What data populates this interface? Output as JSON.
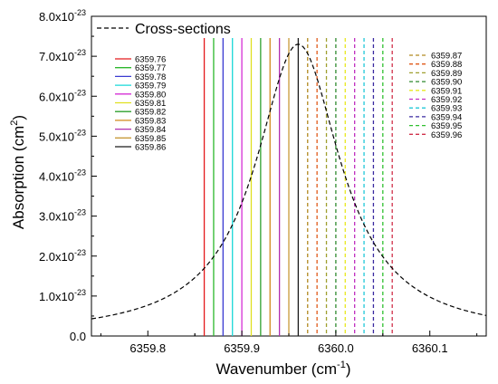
{
  "chart_data": {
    "type": "line",
    "xlabel": "Wavenumber (cm",
    "xlabel_sup": "-1",
    "xlabel_end": ")",
    "ylabel": "Absorption (cm",
    "ylabel_sup": "2",
    "ylabel_end": ")",
    "xlim": [
      6359.74,
      6360.16
    ],
    "ylim": [
      0,
      8e-23
    ],
    "x_ticks": [
      {
        "value": 6359.8,
        "label": "6359.8"
      },
      {
        "value": 6359.9,
        "label": "6359.9"
      },
      {
        "value": 6360.0,
        "label": "6360.0"
      },
      {
        "value": 6360.1,
        "label": "6360.1"
      }
    ],
    "y_ticks": [
      {
        "value": 0,
        "label": "0.0",
        "exp": ""
      },
      {
        "value": 1e-23,
        "label": "1.0x10",
        "exp": "-23"
      },
      {
        "value": 2e-23,
        "label": "2.0x10",
        "exp": "-23"
      },
      {
        "value": 3e-23,
        "label": "3.0x10",
        "exp": "-23"
      },
      {
        "value": 4e-23,
        "label": "4.0x10",
        "exp": "-23"
      },
      {
        "value": 5e-23,
        "label": "5.0x10",
        "exp": "-23"
      },
      {
        "value": 6e-23,
        "label": "6.0x10",
        "exp": "-23"
      },
      {
        "value": 7e-23,
        "label": "7.0x10",
        "exp": "-23"
      },
      {
        "value": 8e-23,
        "label": "8.0x10",
        "exp": "-23"
      }
    ],
    "curve": {
      "name": "Cross-sections",
      "style": "dashed",
      "color": "#000000",
      "center": 6359.96,
      "peak": 7.3e-23,
      "hwhm": 0.055
    },
    "lines": [
      {
        "x": 6359.86,
        "label": "6359.76",
        "color": "#e41a1c",
        "style": "solid"
      },
      {
        "x": 6359.87,
        "label": "6359.77",
        "color": "#2db82d",
        "style": "solid"
      },
      {
        "x": 6359.88,
        "label": "6359.78",
        "color": "#3b3bd1",
        "style": "solid"
      },
      {
        "x": 6359.89,
        "label": "6359.79",
        "color": "#18d8d8",
        "style": "solid"
      },
      {
        "x": 6359.9,
        "label": "6359.80",
        "color": "#d62fd6",
        "style": "solid"
      },
      {
        "x": 6359.91,
        "label": "6359.81",
        "color": "#e0e020",
        "style": "solid"
      },
      {
        "x": 6359.92,
        "label": "6359.82",
        "color": "#2ea02e",
        "style": "solid"
      },
      {
        "x": 6359.93,
        "label": "6359.83",
        "color": "#d08a1a",
        "style": "solid"
      },
      {
        "x": 6359.94,
        "label": "6359.84",
        "color": "#b02fb0",
        "style": "solid"
      },
      {
        "x": 6359.95,
        "label": "6359.85",
        "color": "#c89a3a",
        "style": "solid"
      },
      {
        "x": 6359.96,
        "label": "6359.86",
        "color": "#1a1a1a",
        "style": "solid"
      },
      {
        "x": 6359.97,
        "label": "6359.87",
        "color": "#b28a20",
        "style": "dashed"
      },
      {
        "x": 6359.98,
        "label": "6359.88",
        "color": "#e05a1a",
        "style": "dashed"
      },
      {
        "x": 6359.99,
        "label": "6359.89",
        "color": "#a0a030",
        "style": "dashed"
      },
      {
        "x": 6360.0,
        "label": "6359.90",
        "color": "#2f8a2f",
        "style": "dashed"
      },
      {
        "x": 6360.01,
        "label": "6359.91",
        "color": "#e8e820",
        "style": "dashed"
      },
      {
        "x": 6360.02,
        "label": "6359.92",
        "color": "#c02fc0",
        "style": "dashed"
      },
      {
        "x": 6360.03,
        "label": "6359.93",
        "color": "#20c8d8",
        "style": "dashed"
      },
      {
        "x": 6360.04,
        "label": "6359.94",
        "color": "#3a2aa0",
        "style": "dashed"
      },
      {
        "x": 6360.05,
        "label": "6359.95",
        "color": "#30c030",
        "style": "dashed"
      },
      {
        "x": 6360.06,
        "label": "6359.96",
        "color": "#d0304a",
        "style": "dashed"
      }
    ],
    "grid": false,
    "legend_curve_placement": "top-left",
    "legend_lines_placement": [
      "left",
      "right"
    ]
  }
}
